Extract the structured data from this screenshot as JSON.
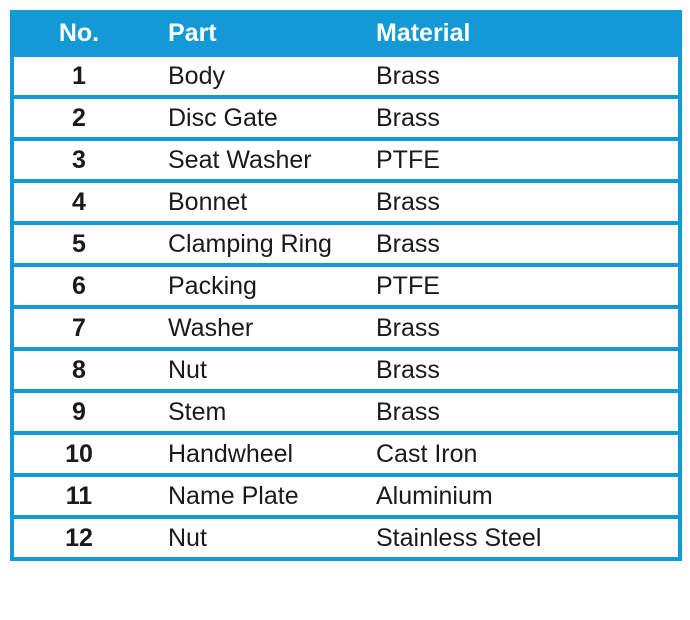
{
  "style": {
    "accent_color": "#1399D6",
    "header_text_color": "#FFFFFF",
    "body_text_color": "#1A1A1A",
    "page_background": "#FFFFFF"
  },
  "chart_data": {
    "type": "table",
    "title": "",
    "columns": [
      "No.",
      "Part",
      "Material"
    ],
    "rows": [
      [
        "1",
        "Body",
        "Brass"
      ],
      [
        "2",
        "Disc Gate",
        "Brass"
      ],
      [
        "3",
        "Seat Washer",
        "PTFE"
      ],
      [
        "4",
        "Bonnet",
        "Brass"
      ],
      [
        "5",
        "Clamping Ring",
        "Brass"
      ],
      [
        "6",
        "Packing",
        "PTFE"
      ],
      [
        "7",
        "Washer",
        "Brass"
      ],
      [
        "8",
        "Nut",
        "Brass"
      ],
      [
        "9",
        "Stem",
        "Brass"
      ],
      [
        "10",
        "Handwheel",
        "Cast Iron"
      ],
      [
        "11",
        "Name Plate",
        "Aluminium"
      ],
      [
        "12",
        "Nut",
        "Stainless Steel"
      ]
    ],
    "layout": {
      "grid": "horizontal-separators-only",
      "header_background": "#1399D6",
      "no_column_alignment": "center",
      "part_column_alignment": "left",
      "material_column_alignment": "left"
    }
  }
}
